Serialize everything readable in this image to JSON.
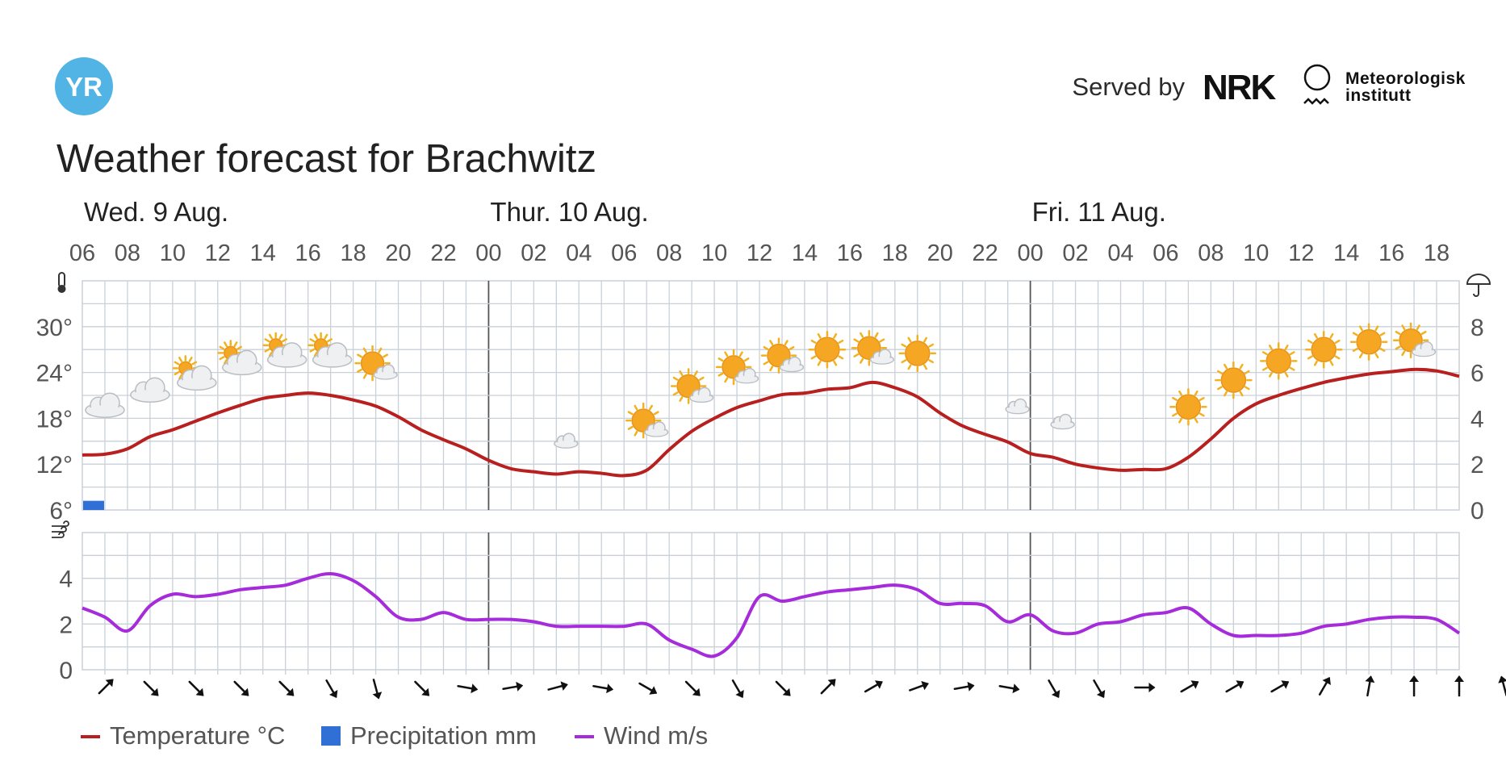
{
  "header": {
    "logo_text": "YR",
    "served_by": "Served by",
    "nrk_logo": "NRK",
    "met_name_line1": "Meteorologisk",
    "met_name_line2": "institutt",
    "title": "Weather forecast for Brachwitz"
  },
  "colors": {
    "yr_blue": "#52b4e5",
    "temperature": "#b81f1f",
    "precipitation": "#2f6fd6",
    "wind": "#a52bdb",
    "grid": "#c9d0d8",
    "day_divider": "#555555"
  },
  "icons": {
    "temp_axis": "thermometer-icon",
    "precip_axis": "umbrella-icon",
    "wind_axis": "wind-icon"
  },
  "chart_data": [
    {
      "type": "line",
      "days": [
        {
          "label": "Wed. 9 Aug.",
          "hour": 6
        },
        {
          "label": "Thur. 10 Aug.",
          "hour": 24
        },
        {
          "label": "Fri. 11 Aug.",
          "hour": 48
        }
      ],
      "x_tick_labels": [
        "06",
        "08",
        "10",
        "12",
        "14",
        "16",
        "18",
        "20",
        "22",
        "00",
        "02",
        "04",
        "06",
        "08",
        "10",
        "12",
        "14",
        "16",
        "18",
        "20",
        "22",
        "00",
        "02",
        "04",
        "06",
        "08",
        "10",
        "12",
        "14",
        "16",
        "18"
      ],
      "x_range_hours": [
        6,
        67
      ],
      "left_axis": {
        "ticks": [
          "6°",
          "12°",
          "18°",
          "24°",
          "30°"
        ],
        "ylim": [
          6,
          36
        ]
      },
      "right_axis": {
        "ticks": [
          "0",
          "2",
          "4",
          "6",
          "8"
        ],
        "ylim": [
          0,
          10
        ]
      },
      "series": [
        {
          "name": "Temperature °C",
          "x_hours": [
            6,
            7,
            8,
            9,
            10,
            11,
            12,
            13,
            14,
            15,
            16,
            17,
            18,
            19,
            20,
            21,
            22,
            23,
            24,
            25,
            26,
            27,
            28,
            29,
            30,
            31,
            32,
            33,
            34,
            35,
            36,
            37,
            38,
            39,
            40,
            41,
            42,
            43,
            44,
            45,
            46,
            47,
            48,
            49,
            50,
            51,
            52,
            53,
            54,
            55,
            56,
            57,
            58,
            59,
            60,
            61,
            62,
            63,
            64,
            65,
            66,
            67
          ],
          "values": [
            13.2,
            13.3,
            14.0,
            15.6,
            16.5,
            17.6,
            18.7,
            19.7,
            20.6,
            21.0,
            21.3,
            21.0,
            20.4,
            19.6,
            18.2,
            16.5,
            15.2,
            14.0,
            12.5,
            11.4,
            11.0,
            10.7,
            11.0,
            10.8,
            10.5,
            11.2,
            13.9,
            16.3,
            18.0,
            19.4,
            20.3,
            21.1,
            21.3,
            21.8,
            22.0,
            22.7,
            22.0,
            20.8,
            18.7,
            17.0,
            15.9,
            14.9,
            13.4,
            12.9,
            12.0,
            11.5,
            11.2,
            11.3,
            11.4,
            12.9,
            15.3,
            18.0,
            19.9,
            21.0,
            21.9,
            22.7,
            23.3,
            23.8,
            24.1,
            24.4,
            24.2,
            23.5
          ]
        },
        {
          "name": "Precipitation mm",
          "bars": [
            {
              "x_hour": 6,
              "value": 0.4
            }
          ]
        }
      ],
      "weather_symbols": [
        {
          "x_hour": 7,
          "temp": 19.5,
          "symbol": "cloudy"
        },
        {
          "x_hour": 9,
          "temp": 21.5,
          "symbol": "cloudy"
        },
        {
          "x_hour": 11,
          "temp": 23.5,
          "symbol": "partly-cloudy-day"
        },
        {
          "x_hour": 13,
          "temp": 25.5,
          "symbol": "partly-cloudy-day"
        },
        {
          "x_hour": 15,
          "temp": 26.5,
          "symbol": "partly-cloudy-day"
        },
        {
          "x_hour": 17,
          "temp": 26.5,
          "symbol": "partly-cloudy-day"
        },
        {
          "x_hour": 19,
          "temp": 25.0,
          "symbol": "fair-day"
        },
        {
          "x_hour": 21,
          "temp": 22.0,
          "symbol": "clear-night"
        },
        {
          "x_hour": 23,
          "temp": 19.5,
          "symbol": "clear-night"
        },
        {
          "x_hour": 25,
          "temp": 17.5,
          "symbol": "clear-night"
        },
        {
          "x_hour": 27,
          "temp": 16.0,
          "symbol": "fair-night"
        },
        {
          "x_hour": 29,
          "temp": 16.0,
          "symbol": "clear-night"
        },
        {
          "x_hour": 31,
          "temp": 17.5,
          "symbol": "fair-day"
        },
        {
          "x_hour": 33,
          "temp": 22.0,
          "symbol": "fair-day"
        },
        {
          "x_hour": 35,
          "temp": 24.5,
          "symbol": "fair-day"
        },
        {
          "x_hour": 37,
          "temp": 26.0,
          "symbol": "fair-day"
        },
        {
          "x_hour": 39,
          "temp": 27.0,
          "symbol": "clear-day"
        },
        {
          "x_hour": 41,
          "temp": 27.0,
          "symbol": "fair-day"
        },
        {
          "x_hour": 43,
          "temp": 26.5,
          "symbol": "clear-day"
        },
        {
          "x_hour": 45,
          "temp": 23.0,
          "symbol": "clear-night"
        },
        {
          "x_hour": 47,
          "temp": 20.5,
          "symbol": "fair-night"
        },
        {
          "x_hour": 49,
          "temp": 18.5,
          "symbol": "fair-night"
        },
        {
          "x_hour": 51,
          "temp": 17.0,
          "symbol": "clear-night"
        },
        {
          "x_hour": 53,
          "temp": 17.0,
          "symbol": "clear-night"
        },
        {
          "x_hour": 55,
          "temp": 19.5,
          "symbol": "clear-day"
        },
        {
          "x_hour": 57,
          "temp": 23.0,
          "symbol": "clear-day"
        },
        {
          "x_hour": 59,
          "temp": 25.5,
          "symbol": "clear-day"
        },
        {
          "x_hour": 61,
          "temp": 27.0,
          "symbol": "clear-day"
        },
        {
          "x_hour": 63,
          "temp": 28.0,
          "symbol": "clear-day"
        },
        {
          "x_hour": 65,
          "temp": 28.0,
          "symbol": "fair-day"
        }
      ]
    },
    {
      "type": "line",
      "left_axis": {
        "ticks": [
          "0",
          "2",
          "4"
        ],
        "ylim": [
          0,
          6
        ]
      },
      "series": [
        {
          "name": "Wind m/s",
          "x_hours": [
            6,
            7,
            8,
            9,
            10,
            11,
            12,
            13,
            14,
            15,
            16,
            17,
            18,
            19,
            20,
            21,
            22,
            23,
            24,
            25,
            26,
            27,
            28,
            29,
            30,
            31,
            32,
            33,
            34,
            35,
            36,
            37,
            38,
            39,
            40,
            41,
            42,
            43,
            44,
            45,
            46,
            47,
            48,
            49,
            50,
            51,
            52,
            53,
            54,
            55,
            56,
            57,
            58,
            59,
            60,
            61,
            62,
            63,
            64,
            65,
            66,
            67
          ],
          "values": [
            2.7,
            2.3,
            1.7,
            2.8,
            3.3,
            3.2,
            3.3,
            3.5,
            3.6,
            3.7,
            4.0,
            4.2,
            3.9,
            3.2,
            2.3,
            2.2,
            2.5,
            2.2,
            2.2,
            2.2,
            2.1,
            1.9,
            1.9,
            1.9,
            1.9,
            2.0,
            1.3,
            0.9,
            0.6,
            1.4,
            3.2,
            3.0,
            3.2,
            3.4,
            3.5,
            3.6,
            3.7,
            3.5,
            2.9,
            2.9,
            2.8,
            2.1,
            2.4,
            1.7,
            1.6,
            2.0,
            2.1,
            2.4,
            2.5,
            2.7,
            2.0,
            1.5,
            1.5,
            1.5,
            1.6,
            1.9,
            2.0,
            2.2,
            2.3,
            2.3,
            2.2,
            1.6
          ]
        }
      ],
      "wind_direction_arrows_deg": [
        45,
        135,
        135,
        135,
        135,
        150,
        165,
        135,
        100,
        80,
        75,
        100,
        120,
        135,
        150,
        135,
        45,
        60,
        70,
        80,
        100,
        150,
        150,
        90,
        60,
        60,
        60,
        30,
        10,
        0,
        0,
        -15,
        -15,
        -30
      ]
    }
  ],
  "legend": [
    {
      "label": "Temperature °C",
      "kind": "line",
      "color": "#b81f1f"
    },
    {
      "label": "Precipitation mm",
      "kind": "box",
      "color": "#2f6fd6"
    },
    {
      "label": "Wind m/s",
      "kind": "line",
      "color": "#a52bdb"
    }
  ]
}
